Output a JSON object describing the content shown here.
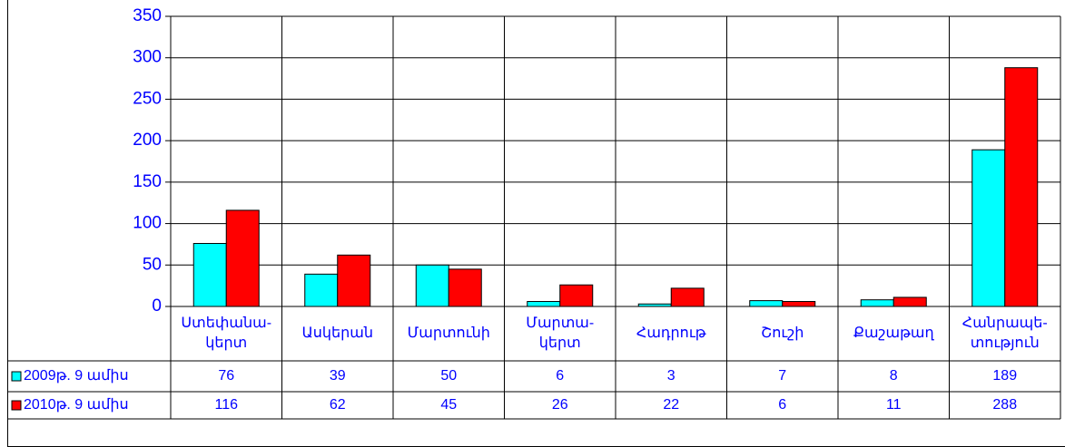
{
  "chart_data": {
    "type": "bar",
    "categories": [
      "Ստեփանա-\nկերտ",
      "Ասկերան",
      "Մարտունի",
      "Մարտա-\nկերտ",
      "Հադրութ",
      "Շուշի",
      "Քաշաթաղ",
      "Հանրապե-\nտություն"
    ],
    "series": [
      {
        "name": "2009թ. 9 ամիս",
        "color": "#00ffff",
        "values": [
          76,
          39,
          50,
          6,
          3,
          7,
          8,
          189
        ]
      },
      {
        "name": "2010թ. 9 ամիս",
        "color": "#ff0000",
        "values": [
          116,
          62,
          45,
          26,
          22,
          6,
          11,
          288
        ]
      }
    ],
    "ylim": [
      0,
      350
    ],
    "yticks": [
      0,
      50,
      100,
      150,
      200,
      250,
      300,
      350
    ],
    "grid": true
  }
}
